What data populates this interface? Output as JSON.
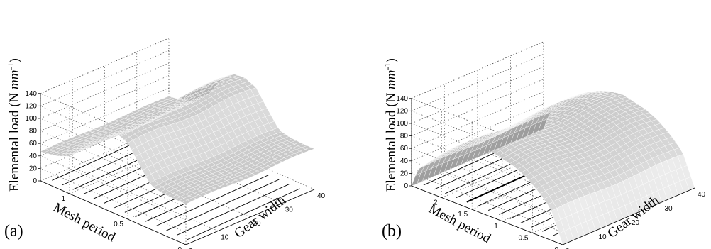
{
  "chart_data": [
    {
      "type": "surface3d",
      "panel_label": "(a)",
      "zlabel_main": "Elemental load (N ",
      "zlabel_unit": "mm",
      "zlabel_exp": "-1",
      "zlabel_close": ")",
      "ylabel": "Mesh period",
      "xlabel": "Gear width",
      "zlim": [
        0,
        140
      ],
      "ylim": [
        0,
        1.25
      ],
      "xlim": [
        0,
        40
      ],
      "z_ticks": [
        "0",
        "20",
        "40",
        "60",
        "80",
        "100",
        "120",
        "140"
      ],
      "y_ticks": [
        {
          "v": 0,
          "t": "0"
        },
        {
          "v": 0.5,
          "t": "0.5"
        },
        {
          "v": 1,
          "t": "1"
        }
      ],
      "x_ticks": [
        {
          "v": 0,
          "t": "0"
        },
        {
          "v": 10,
          "t": "10"
        },
        {
          "v": 20,
          "t": "20"
        },
        {
          "v": 30,
          "t": "30"
        },
        {
          "v": 40,
          "t": "40"
        }
      ],
      "surface": {
        "profile_y": [
          0,
          0.1,
          0.2,
          0.3,
          0.4,
          0.5,
          0.6,
          0.7,
          0.8,
          0.9,
          1.0,
          1.1,
          1.2,
          1.25
        ],
        "profile_z": [
          65,
          65,
          66,
          70,
          95,
          122,
          130,
          128,
          110,
          80,
          60,
          52,
          48,
          47
        ],
        "edge_rise": 0.15
      }
    },
    {
      "type": "surface3d",
      "panel_label": "(b)",
      "zlabel_main": "Elemental load (N ",
      "zlabel_unit": "mm",
      "zlabel_exp": "-1",
      "zlabel_close": ")",
      "ylabel": "Mesh period",
      "xlabel": "Gear width",
      "zlim": [
        0,
        140
      ],
      "ylim": [
        0,
        2.5
      ],
      "xlim": [
        0,
        40
      ],
      "z_ticks": [
        "0",
        "20",
        "40",
        "60",
        "80",
        "100",
        "120",
        "140"
      ],
      "y_ticks": [
        {
          "v": 0,
          "t": "0"
        },
        {
          "v": 0.5,
          "t": "0.5"
        },
        {
          "v": 1,
          "t": "1"
        },
        {
          "v": 1.5,
          "t": "1.5"
        },
        {
          "v": 2,
          "t": "2"
        }
      ],
      "x_ticks": [
        {
          "v": 0,
          "t": "0"
        },
        {
          "v": 10,
          "t": "10"
        },
        {
          "v": 20,
          "t": "20"
        },
        {
          "v": 30,
          "t": "30"
        },
        {
          "v": 40,
          "t": "40"
        }
      ],
      "surface": {
        "profile_y": [
          0,
          0.2,
          0.4,
          0.6,
          0.8,
          1.0,
          1.2,
          1.4,
          1.6,
          1.8,
          2.0,
          2.2,
          2.4,
          2.5
        ],
        "profile_z": [
          0,
          50,
          70,
          85,
          95,
          100,
          105,
          102,
          95,
          85,
          70,
          50,
          30,
          0
        ],
        "edge_rise": 0.25
      }
    }
  ]
}
